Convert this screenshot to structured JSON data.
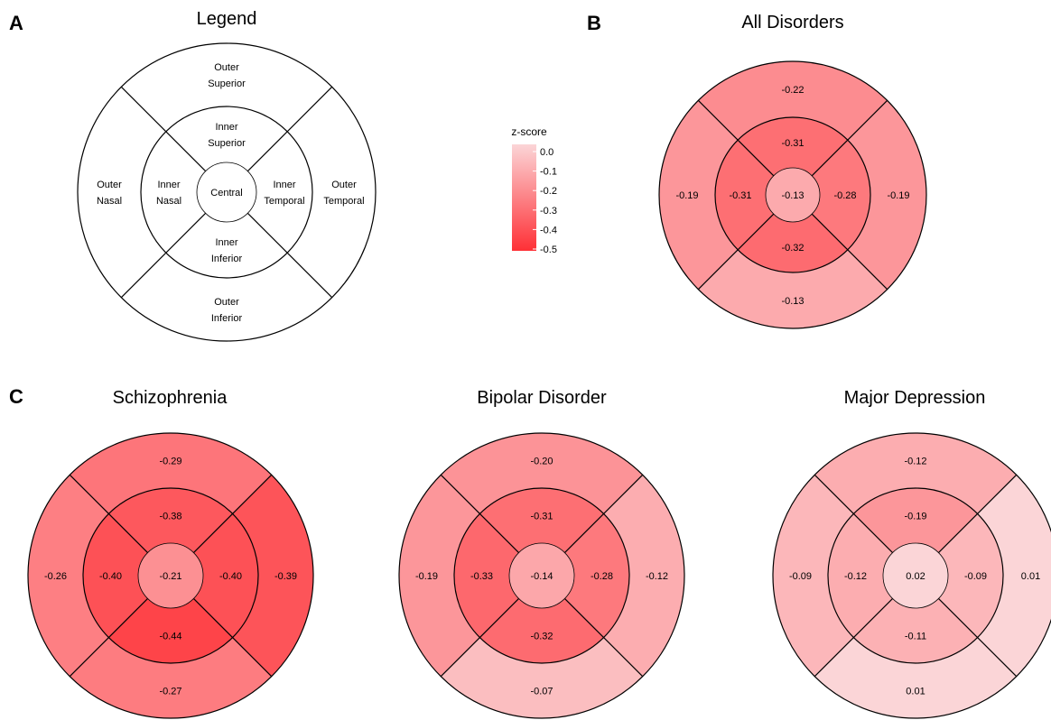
{
  "panels": {
    "A": {
      "letter": "A",
      "title": "Legend"
    },
    "B": {
      "letter": "B",
      "title": "All Disorders"
    },
    "C": {
      "letter": "C"
    }
  },
  "legend_regions": {
    "outer_superior": [
      "Outer",
      "Superior"
    ],
    "outer_inferior": [
      "Outer",
      "Inferior"
    ],
    "outer_nasal": [
      "Outer",
      "Nasal"
    ],
    "outer_temporal": [
      "Outer",
      "Temporal"
    ],
    "inner_superior": [
      "Inner",
      "Superior"
    ],
    "inner_inferior": [
      "Inner",
      "Inferior"
    ],
    "inner_nasal": [
      "Inner",
      "Nasal"
    ],
    "inner_temporal": [
      "Inner",
      "Temporal"
    ],
    "central": [
      "Central"
    ]
  },
  "chart_data": {
    "type": "heatmap",
    "description_regions": [
      "central",
      "inner_superior",
      "inner_inferior",
      "inner_nasal",
      "inner_temporal",
      "outer_superior",
      "outer_inferior",
      "outer_nasal",
      "outer_temporal"
    ],
    "colorbar": {
      "title": "z-score",
      "ticks": [
        "0.0",
        "-0.1",
        "-0.2",
        "-0.3",
        "-0.4",
        "-0.5"
      ],
      "range": [
        -0.5,
        0.0
      ],
      "color_high": "#fbd5d7",
      "color_low": "#fe3036"
    },
    "charts": [
      {
        "key": "all",
        "title": "All Disorders",
        "values": {
          "central": "-0.13",
          "inner_superior": "-0.31",
          "inner_inferior": "-0.32",
          "inner_nasal": "-0.31",
          "inner_temporal": "-0.28",
          "outer_superior": "-0.22",
          "outer_inferior": "-0.13",
          "outer_nasal": "-0.19",
          "outer_temporal": "-0.19"
        }
      },
      {
        "key": "scz",
        "title": "Schizophrenia",
        "values": {
          "central": "-0.21",
          "inner_superior": "-0.38",
          "inner_inferior": "-0.44",
          "inner_nasal": "-0.40",
          "inner_temporal": "-0.40",
          "outer_superior": "-0.29",
          "outer_inferior": "-0.27",
          "outer_nasal": "-0.26",
          "outer_temporal": "-0.39"
        }
      },
      {
        "key": "bip",
        "title": "Bipolar Disorder",
        "values": {
          "central": "-0.14",
          "inner_superior": "-0.31",
          "inner_inferior": "-0.32",
          "inner_nasal": "-0.33",
          "inner_temporal": "-0.28",
          "outer_superior": "-0.20",
          "outer_inferior": "-0.07",
          "outer_nasal": "-0.19",
          "outer_temporal": "-0.12"
        }
      },
      {
        "key": "mdd",
        "title": "Major Depression",
        "values": {
          "central": "0.02",
          "inner_superior": "-0.19",
          "inner_inferior": "-0.11",
          "inner_nasal": "-0.12",
          "inner_temporal": "-0.09",
          "outer_superior": "-0.12",
          "outer_inferior": "0.01",
          "outer_nasal": "-0.09",
          "outer_temporal": "0.01"
        }
      }
    ]
  }
}
